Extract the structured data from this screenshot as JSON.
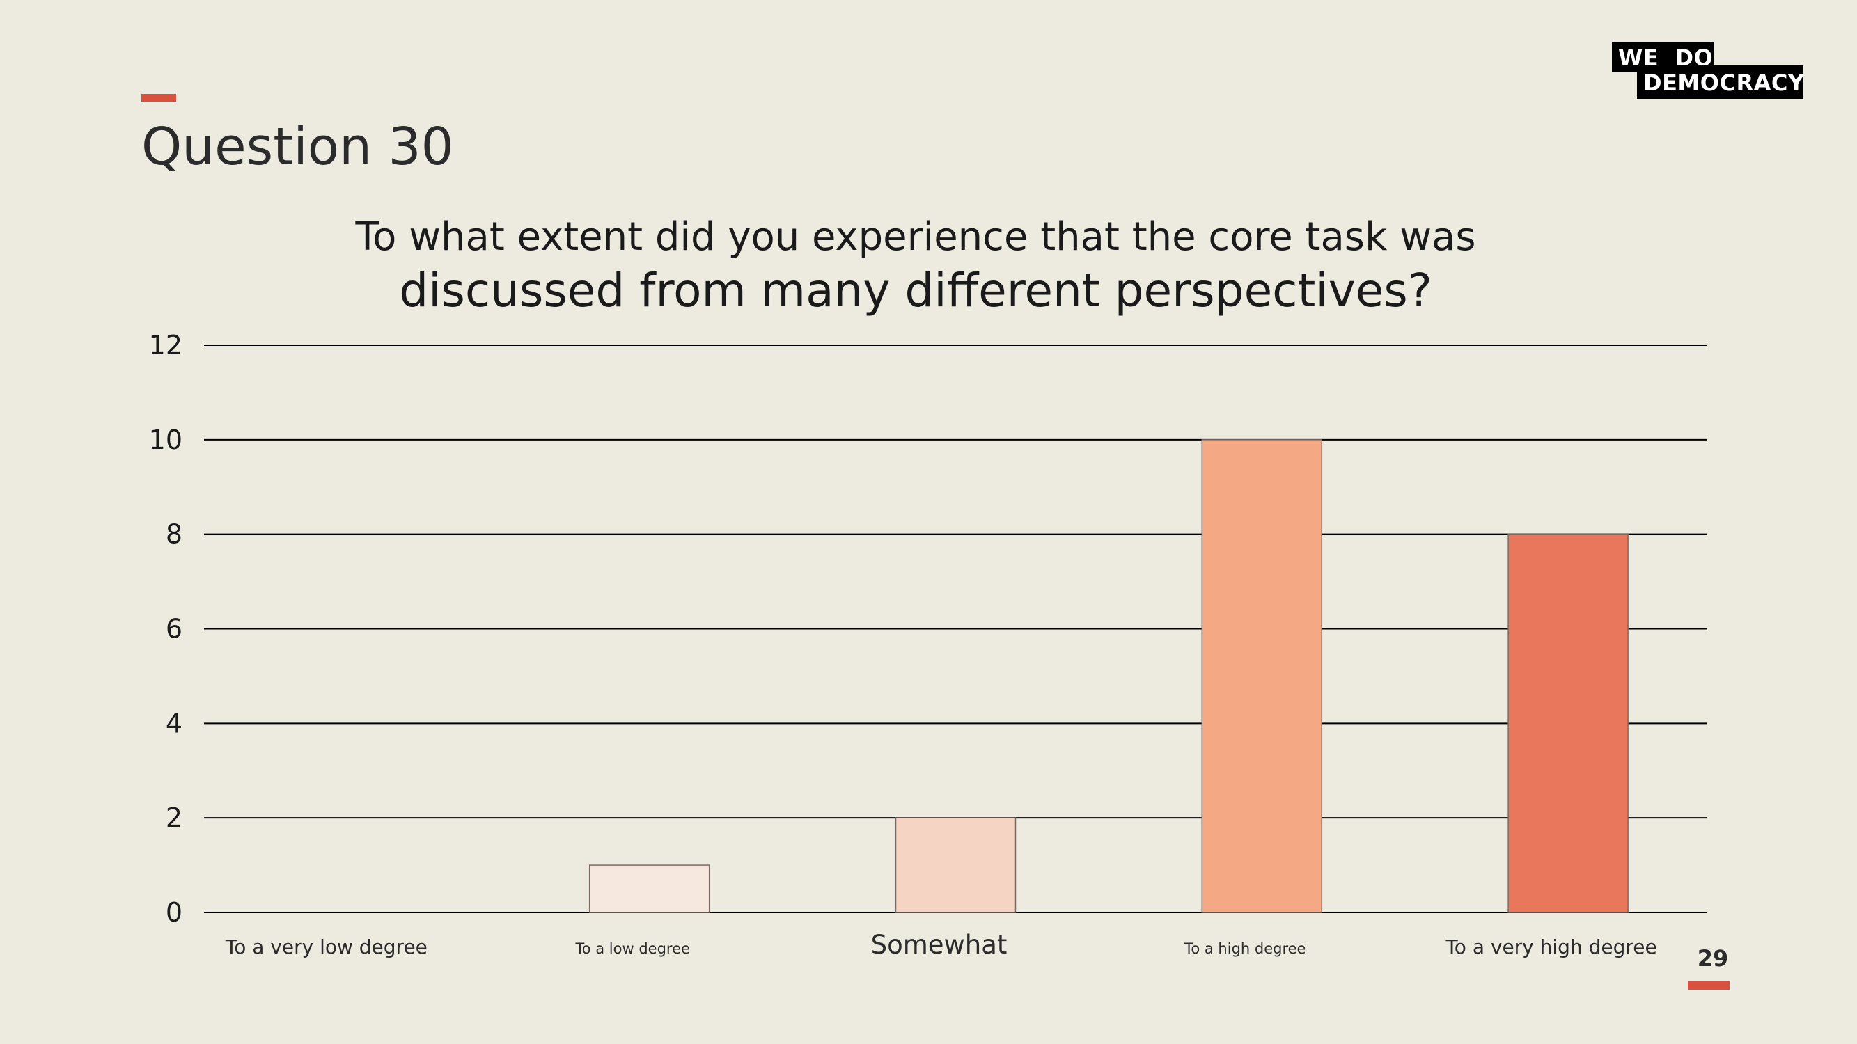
{
  "header": {
    "title": "Question 30"
  },
  "logo": {
    "line1": "WE  DO",
    "line2": "DEMOCRACY"
  },
  "page_number": "29",
  "colors": {
    "background": "#edeadf",
    "accent": "#d9503f",
    "grid": "#000000",
    "text": "#1a1a1a"
  },
  "chart_data": {
    "type": "bar",
    "title": "To what extent did you experience that the core task was",
    "subtitle": "discussed from many different perspectives?",
    "categories": [
      "To a very low degree",
      "To a low degree",
      "Somewhat",
      "To a high degree",
      "To a very high degree"
    ],
    "values": [
      0,
      1,
      2,
      10,
      8
    ],
    "bar_colors": [
      "#f6e7df",
      "#f6e7df",
      "#f5d4c3",
      "#f5a884",
      "#e8775c"
    ],
    "ylim": [
      0,
      12
    ],
    "yticks": [
      0,
      2,
      4,
      6,
      8,
      10,
      12
    ],
    "xlabel": "",
    "ylabel": "",
    "grid": true
  }
}
